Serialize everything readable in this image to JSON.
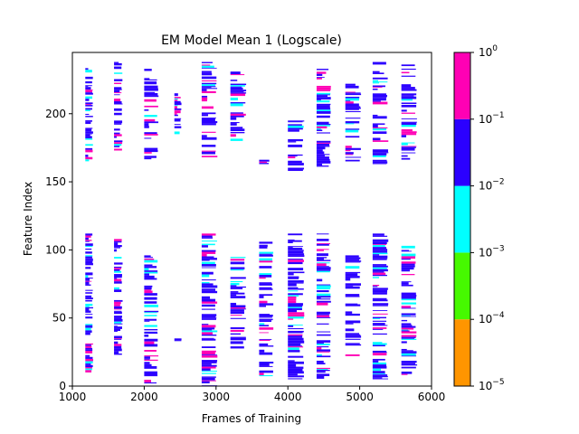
{
  "chart_data": {
    "type": "heatmap",
    "title": "EM Model Mean 1 (Logscale)",
    "xlabel": "Frames of Training",
    "ylabel": "Feature Index",
    "xlim": [
      1000,
      6000
    ],
    "ylim": [
      0,
      245
    ],
    "xticks": [
      1000,
      2000,
      3000,
      4000,
      5000,
      6000
    ],
    "yticks": [
      0,
      50,
      100,
      150,
      200
    ],
    "colorbar": {
      "scale": "log",
      "range": [
        1e-05,
        1
      ],
      "tick_labels": [
        {
          "base": "10",
          "exp": "−5"
        },
        {
          "base": "10",
          "exp": "−4"
        },
        {
          "base": "10",
          "exp": "−3"
        },
        {
          "base": "10",
          "exp": "−2"
        },
        {
          "base": "10",
          "exp": "−1"
        },
        {
          "base": "10",
          "exp": "0"
        }
      ],
      "bins": [
        {
          "from": 1e-05,
          "to": 0.0001,
          "color": "#ff9500"
        },
        {
          "from": 0.0001,
          "to": 0.001,
          "color": "#46f900"
        },
        {
          "from": 0.001,
          "to": 0.01,
          "color": "#00ffff"
        },
        {
          "from": 0.01,
          "to": 0.1,
          "color": "#2b00ff"
        },
        {
          "from": 0.1,
          "to": 1,
          "color": "#ff00b4"
        }
      ]
    },
    "columns": [
      {
        "x": [
          1180,
          1290
        ],
        "lower": [
          10,
          112
        ],
        "upper": [
          165,
          238
        ]
      },
      {
        "x": [
          1580,
          1700
        ],
        "lower": [
          22,
          108
        ],
        "upper": [
          172,
          238
        ]
      },
      {
        "x": [
          2000,
          2200
        ],
        "lower": [
          0,
          96
        ],
        "upper": [
          165,
          233
        ]
      },
      {
        "x": [
          2420,
          2520
        ],
        "lower": [
          33,
          35
        ],
        "upper": [
          185,
          215
        ]
      },
      {
        "x": [
          2800,
          3020
        ],
        "lower": [
          0,
          112
        ],
        "upper": [
          168,
          238
        ]
      },
      {
        "x": [
          3200,
          3420
        ],
        "lower": [
          26,
          96
        ],
        "upper": [
          180,
          233
        ]
      },
      {
        "x": [
          3600,
          3800
        ],
        "lower": [
          7,
          106
        ],
        "upper": [
          163,
          170
        ]
      },
      {
        "x": [
          4000,
          4230
        ],
        "lower": [
          5,
          112
        ],
        "upper": [
          158,
          195
        ]
      },
      {
        "x": [
          4400,
          4600
        ],
        "lower": [
          5,
          112
        ],
        "upper": [
          160,
          233
        ]
      },
      {
        "x": [
          4800,
          5020
        ],
        "lower": [
          22,
          96
        ],
        "upper": [
          165,
          222
        ]
      },
      {
        "x": [
          5180,
          5400
        ],
        "lower": [
          5,
          112
        ],
        "upper": [
          163,
          238
        ]
      },
      {
        "x": [
          5580,
          5800
        ],
        "lower": [
          7,
          103
        ],
        "upper": [
          165,
          238
        ]
      }
    ]
  }
}
